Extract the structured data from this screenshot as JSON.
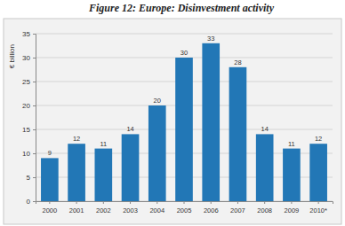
{
  "chart_data": {
    "type": "bar",
    "title": "Figure 12: Europe: Disinvestment activity",
    "y_label": "€ billion",
    "categories": [
      "2000",
      "2001",
      "2002",
      "2003",
      "2004",
      "2005",
      "2006",
      "2007",
      "2008",
      "2009",
      "2010*"
    ],
    "values": [
      9,
      12,
      11,
      14,
      20,
      30,
      33,
      28,
      14,
      11,
      12
    ],
    "color": "#2277b6",
    "ylim": [
      0,
      35
    ],
    "yticks": [
      0,
      5,
      10,
      15,
      20,
      25,
      30,
      35
    ],
    "grid": true,
    "data_labels": true
  }
}
